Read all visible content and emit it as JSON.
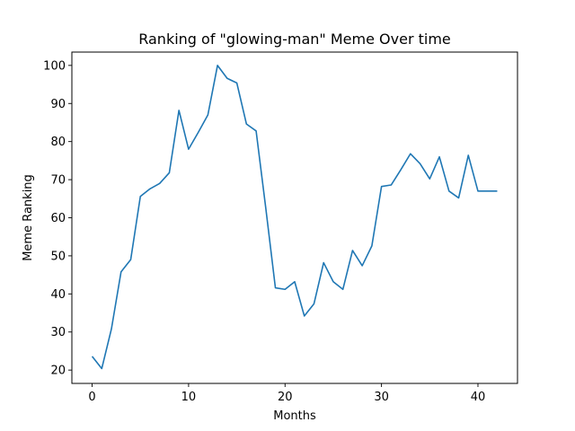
{
  "chart_data": {
    "type": "line",
    "title": "Ranking of \"glowing-man\" Meme Over time",
    "xlabel": "Months",
    "ylabel": "Meme Ranking",
    "xlim": [
      -2.1,
      44.1
    ],
    "ylim": [
      16.5,
      103.5
    ],
    "xticks": [
      0,
      10,
      20,
      30,
      40
    ],
    "yticks": [
      20,
      30,
      40,
      50,
      60,
      70,
      80,
      90,
      100
    ],
    "grid": false,
    "series": [
      {
        "color": "#1f77b4",
        "x": [
          0,
          1,
          2,
          3,
          4,
          5,
          6,
          7,
          8,
          9,
          10,
          11,
          12,
          13,
          14,
          15,
          16,
          17,
          18,
          19,
          20,
          21,
          22,
          23,
          24,
          25,
          26,
          27,
          28,
          29,
          30,
          31,
          32,
          33,
          34,
          35,
          36,
          37,
          38,
          39,
          40,
          41,
          42
        ],
        "values": [
          23.6,
          20.4,
          30.8,
          45.8,
          49.0,
          65.6,
          67.6,
          69.0,
          71.8,
          88.2,
          78.0,
          82.4,
          87.0,
          100.0,
          96.6,
          95.4,
          84.6,
          82.8,
          62.6,
          41.6,
          41.2,
          43.2,
          34.2,
          37.4,
          48.2,
          43.2,
          41.2,
          51.4,
          47.4,
          52.6,
          68.2,
          68.6,
          72.6,
          76.8,
          74.2,
          70.2,
          76.0,
          67.0,
          65.2,
          76.4,
          67.0,
          67.0,
          67.0
        ]
      }
    ]
  }
}
